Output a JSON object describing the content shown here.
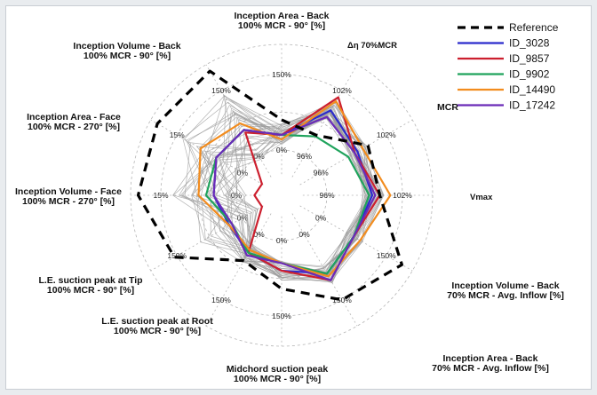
{
  "chart_data": {
    "type": "radar",
    "axes": [
      {
        "lines": [
          "Inception Area - Back",
          "100% MCR - 90° [%]"
        ],
        "ticks": [
          "0%",
          "150%"
        ]
      },
      {
        "lines": [
          "Δη 70%MCR"
        ],
        "ticks": [
          "96%",
          "102%"
        ]
      },
      {
        "lines": [
          "MCR"
        ],
        "ticks": [
          "96%",
          "102%"
        ]
      },
      {
        "lines": [
          "Vmax"
        ],
        "ticks": [
          "96%",
          "102%"
        ]
      },
      {
        "lines": [
          "Inception Volume - Back",
          "70% MCR - Avg. Inflow [%]"
        ],
        "ticks": [
          "0%",
          "150%"
        ]
      },
      {
        "lines": [
          "Inception Area - Back",
          "70% MCR - Avg. Inflow [%]"
        ],
        "ticks": [
          "0%",
          "150%"
        ]
      },
      {
        "lines": [
          "Midchord suction peak",
          "100% MCR - 90° [%]"
        ],
        "ticks": [
          "0%",
          "150%"
        ]
      },
      {
        "lines": [
          "L.E. suction peak at Root",
          "100% MCR - 90° [%]"
        ],
        "ticks": [
          "0%",
          "150%"
        ]
      },
      {
        "lines": [
          "L.E. suction peak at Tip",
          "100% MCR - 90° [%]"
        ],
        "ticks": [
          "0%",
          "150%"
        ]
      },
      {
        "lines": [
          "Inception Volume - Face",
          "100% MCR - 270° [%]"
        ],
        "ticks": [
          "0%",
          "15%"
        ]
      },
      {
        "lines": [
          "Inception Area - Face",
          "100% MCR - 270° [%]"
        ],
        "ticks": [
          "0%",
          "15%"
        ]
      },
      {
        "lines": [
          "Inception Volume - Back",
          "100% MCR - 90° [%]"
        ],
        "ticks": [
          "0%",
          "150%"
        ]
      }
    ],
    "series": [
      {
        "name": "Reference",
        "color": "#000000",
        "style": "dashed",
        "values": [
          0.5,
          0.46,
          0.66,
          0.65,
          0.92,
          0.8,
          0.62,
          0.5,
          0.82,
          0.95,
          0.95,
          0.95
        ]
      },
      {
        "name": "ID_3028",
        "color": "#2b2bcc",
        "style": "solid",
        "values": [
          0.4,
          0.65,
          0.58,
          0.6,
          0.55,
          0.6,
          0.5,
          0.44,
          0.4,
          0.45,
          0.5,
          0.5
        ]
      },
      {
        "name": "ID_9857",
        "color": "#cc1f2e",
        "style": "solid",
        "values": [
          0.4,
          0.75,
          0.56,
          0.65,
          0.55,
          0.65,
          0.5,
          0.44,
          0.15,
          0.18,
          0.15,
          0.48
        ]
      },
      {
        "name": "ID_9902",
        "color": "#1fa35c",
        "style": "solid",
        "values": [
          0.4,
          0.45,
          0.51,
          0.58,
          0.55,
          0.6,
          0.45,
          0.44,
          0.38,
          0.5,
          0.5,
          0.5
        ]
      },
      {
        "name": "ID_14490",
        "color": "#f28c1e",
        "style": "solid",
        "values": [
          0.37,
          0.72,
          0.62,
          0.72,
          0.6,
          0.62,
          0.45,
          0.42,
          0.4,
          0.55,
          0.62,
          0.55
        ]
      },
      {
        "name": "ID_17242",
        "color": "#6a2bb8",
        "style": "solid",
        "values": [
          0.4,
          0.6,
          0.56,
          0.62,
          0.55,
          0.65,
          0.45,
          0.46,
          0.38,
          0.45,
          0.5,
          0.5
        ]
      }
    ],
    "legend_position": "top-right",
    "grid": true
  }
}
